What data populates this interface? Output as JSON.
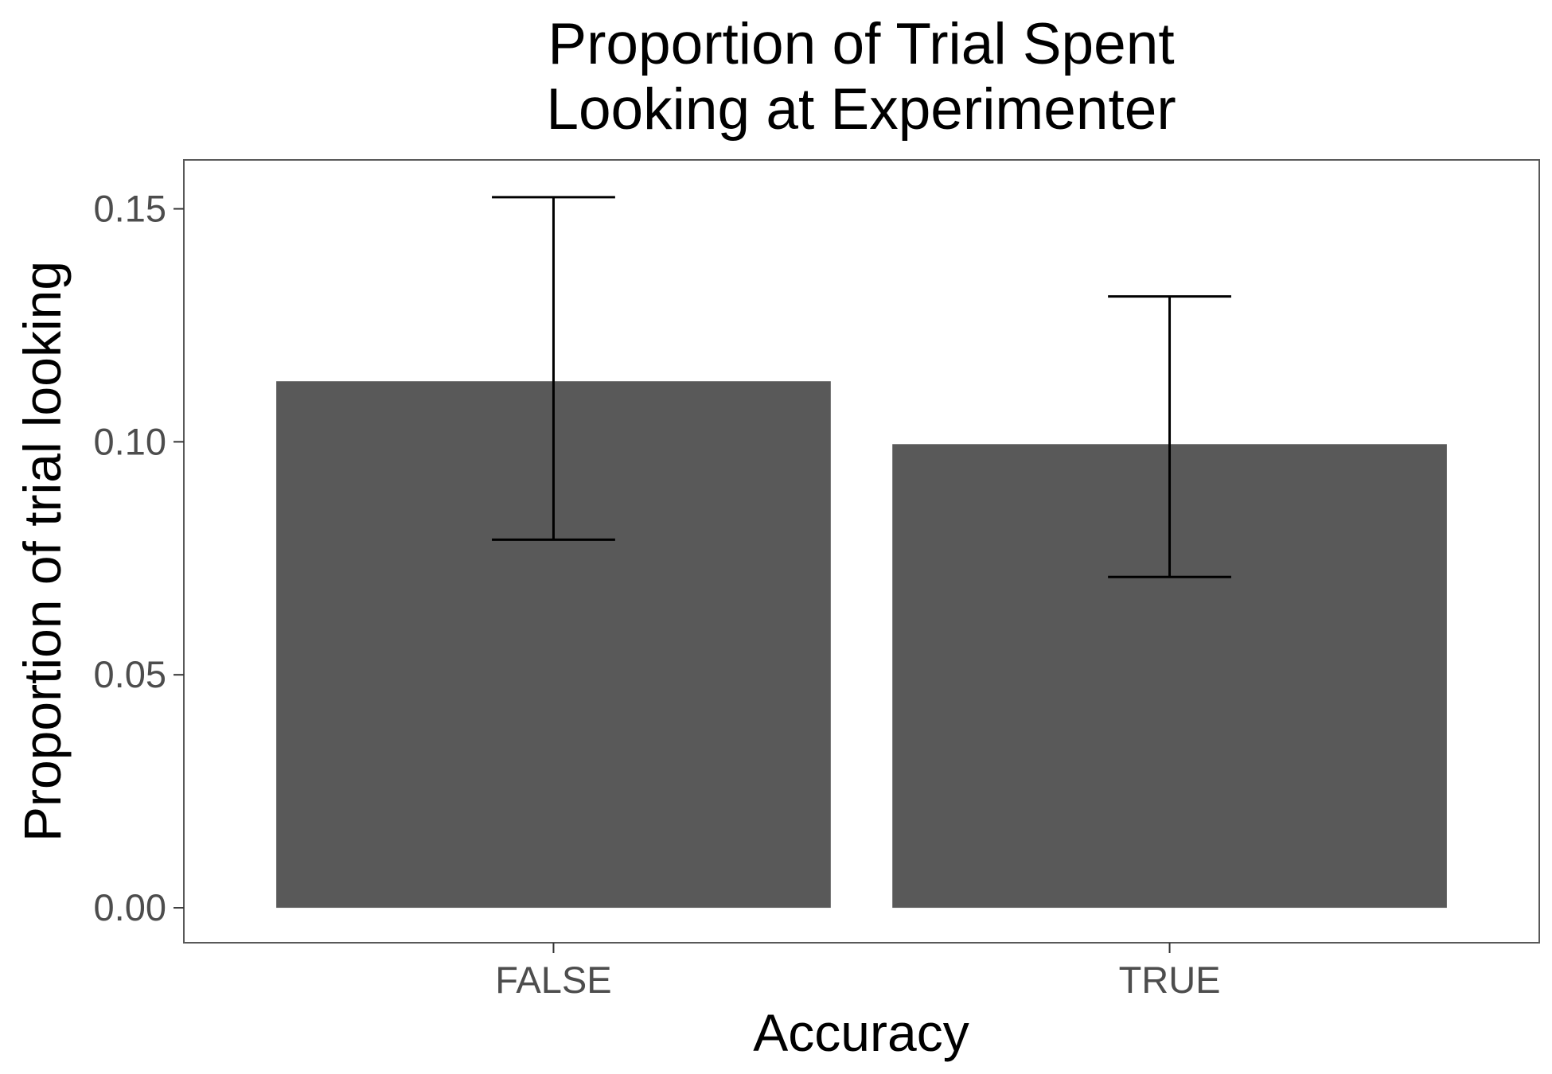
{
  "chart_data": {
    "type": "bar",
    "title_lines": [
      "Proportion of Trial Spent",
      "Looking at Experimenter"
    ],
    "xlabel": "Accuracy",
    "ylabel": "Proportion of trial looking",
    "categories": [
      "FALSE",
      "TRUE"
    ],
    "values": [
      0.113,
      0.0995
    ],
    "error_bars": [
      {
        "low": 0.079,
        "high": 0.1525
      },
      {
        "low": 0.071,
        "high": 0.1312
      }
    ],
    "ylim": [
      -0.0075,
      0.1605
    ],
    "yticks": [
      0,
      0.05,
      0.1,
      0.15
    ],
    "ytick_labels": [
      "0.00",
      "0.05",
      "0.10",
      "0.15"
    ],
    "grid": false,
    "legend": "none",
    "colors": {
      "bar": "#595959",
      "error_bar": "#000000",
      "panel_border": "#595959",
      "tick": "#333333",
      "tick_label": "#4d4d4d"
    }
  }
}
